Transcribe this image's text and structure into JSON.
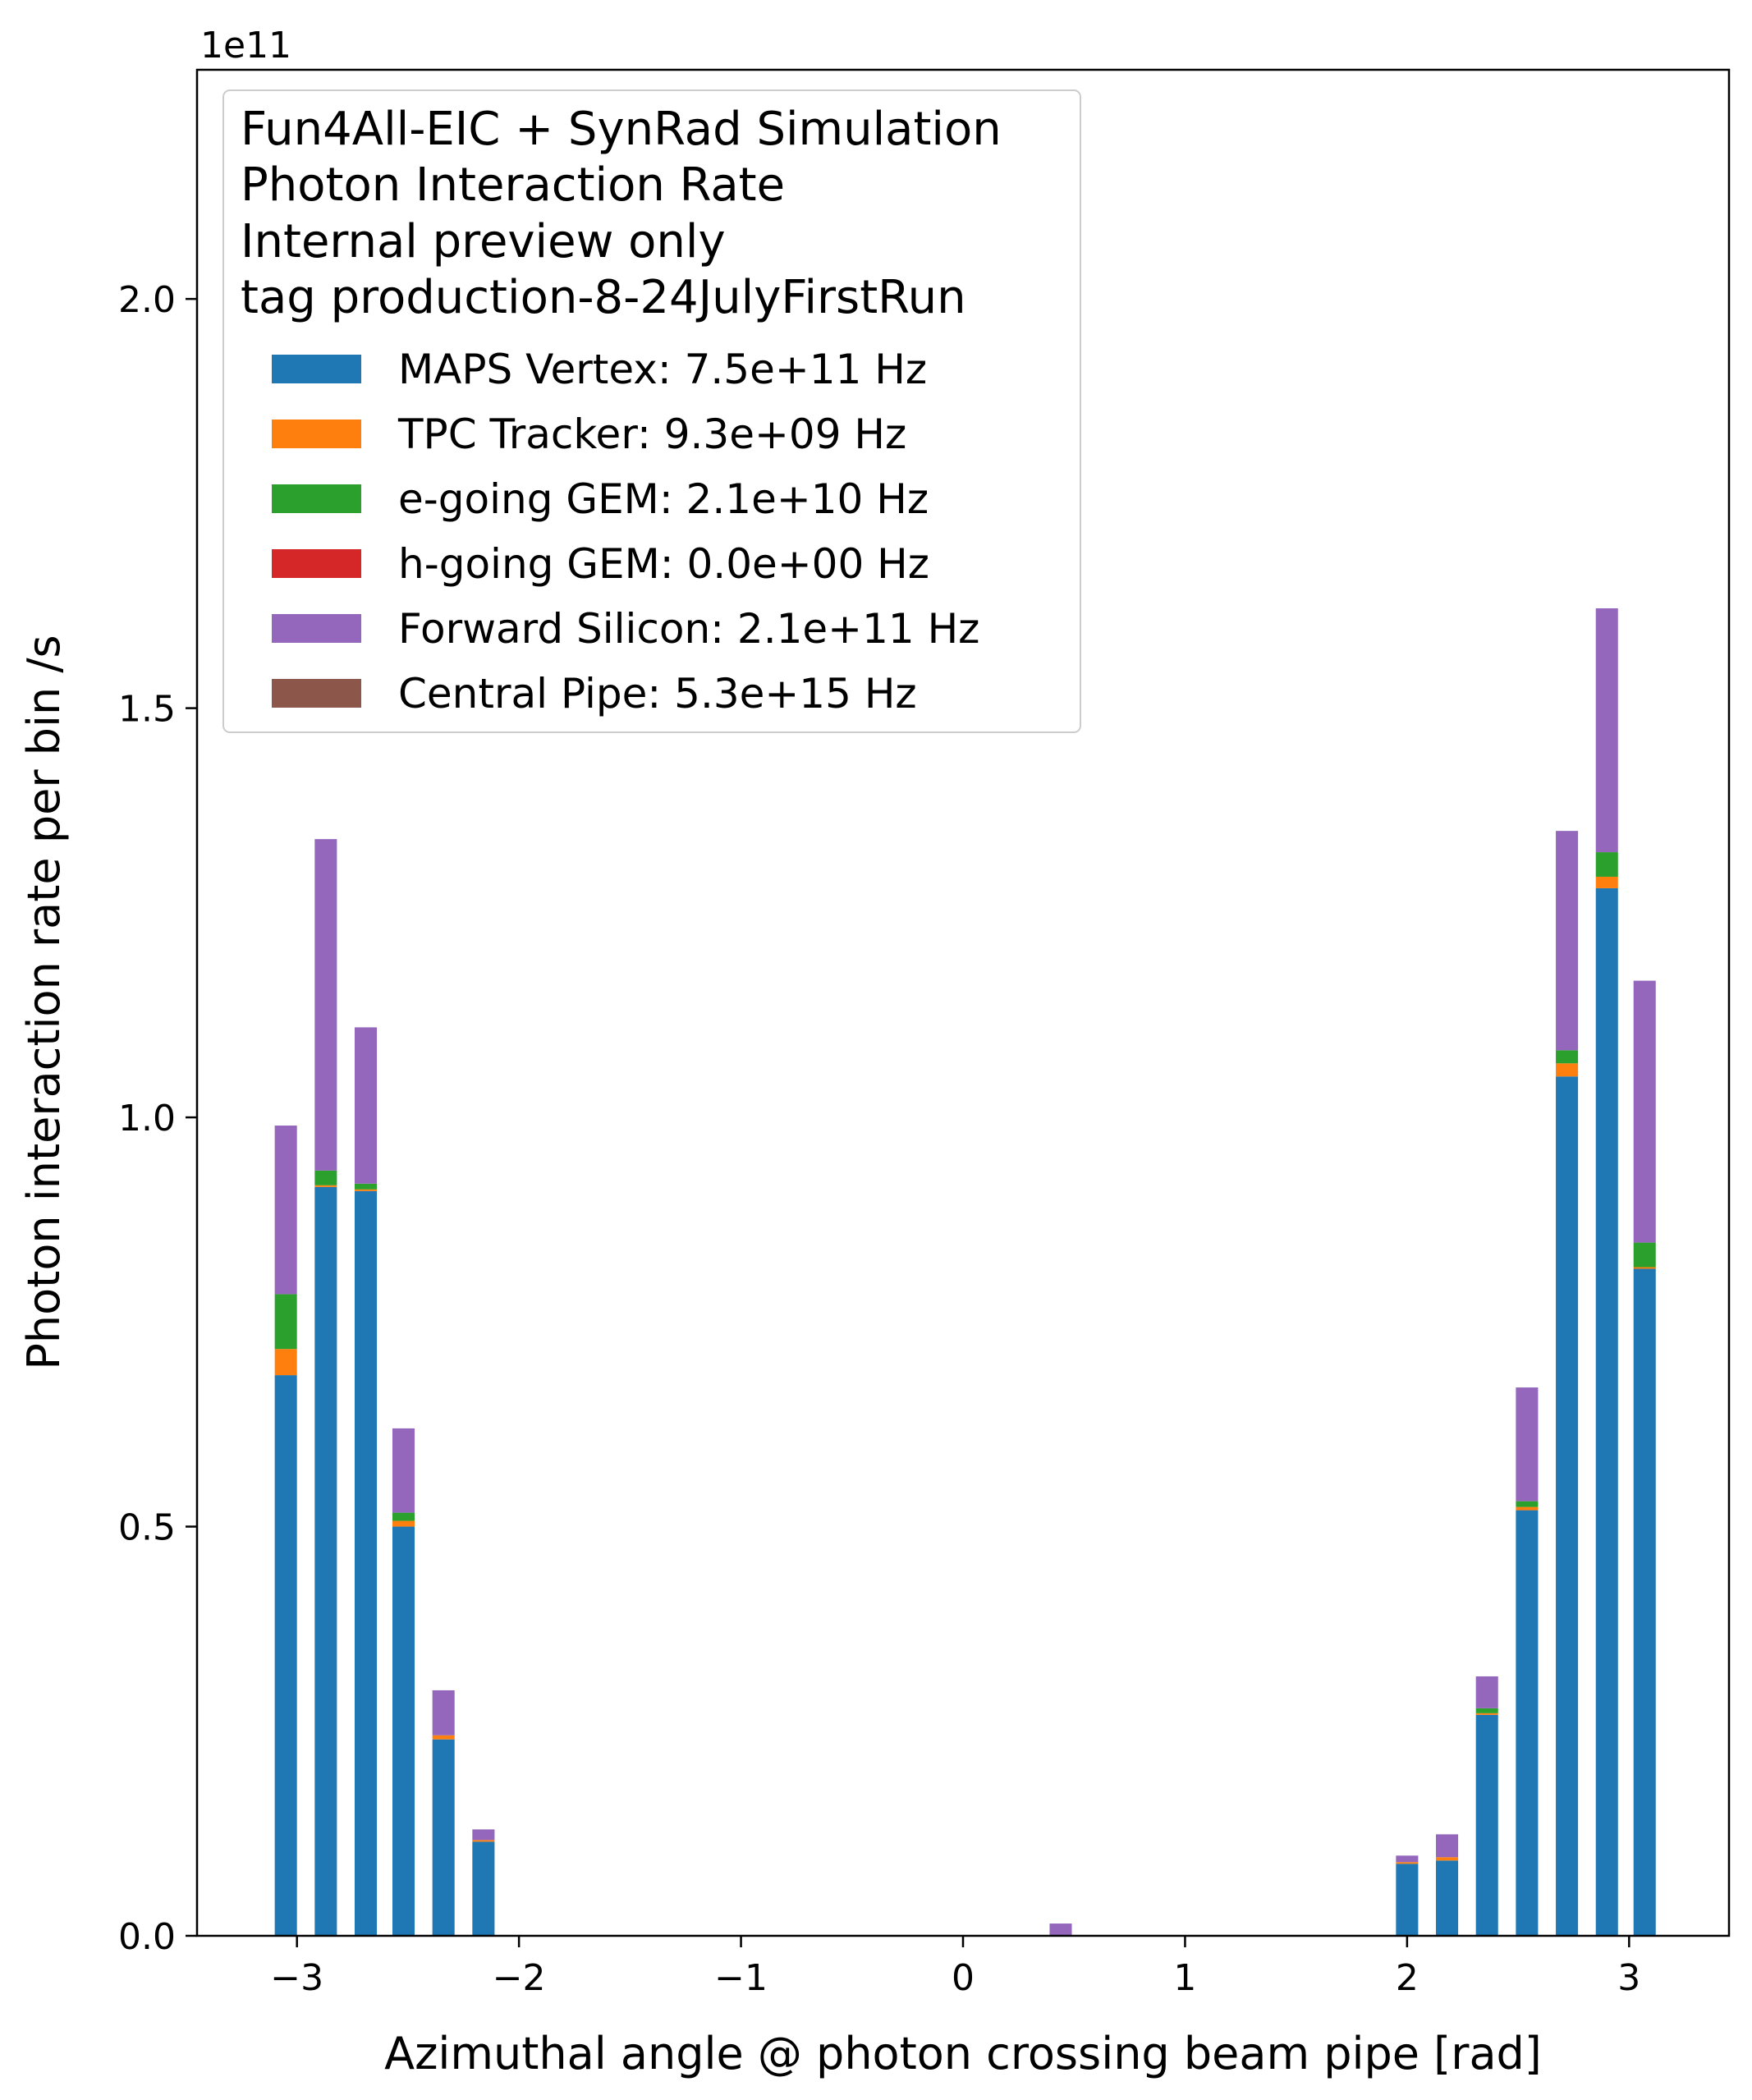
{
  "chart_data": {
    "type": "bar",
    "stacked": true,
    "xlabel": "Azimuthal angle @ photon crossing beam pipe [rad]",
    "ylabel": "Photon interaction rate per bin /s",
    "y_offset_label": "1e11",
    "y_scale": 100000000000.0,
    "xlim": [
      -3.45,
      3.45
    ],
    "ylim": [
      0,
      2.28
    ],
    "x_ticks": [
      -3,
      -2,
      -1,
      0,
      1,
      2,
      3
    ],
    "x_tick_labels": [
      "−3",
      "−2",
      "−1",
      "0",
      "1",
      "2",
      "3"
    ],
    "y_ticks": [
      0.0,
      0.5,
      1.0,
      1.5,
      2.0
    ],
    "y_tick_labels": [
      "0.0",
      "0.5",
      "1.0",
      "1.5",
      "2.0"
    ],
    "bar_width": 0.1,
    "grid": false,
    "legend": {
      "placement": "top-left",
      "title_lines": [
        "Fun4All-EIC + SynRad Simulation",
        "Photon Interaction Rate",
        "Internal preview only",
        "tag production-8-24JulyFirstRun"
      ]
    },
    "x": [
      -3.05,
      -2.87,
      -2.69,
      -2.52,
      -2.34,
      -2.16,
      0.44,
      2.0,
      2.18,
      2.36,
      2.54,
      2.72,
      2.9,
      3.07
    ],
    "series": [
      {
        "name": "MAPS Vertex: 7.5e+11 Hz",
        "color": "#1f77b4",
        "values": [
          0.685,
          0.915,
          0.91,
          0.5,
          0.24,
          0.115,
          0.0,
          0.088,
          0.092,
          0.27,
          0.52,
          1.05,
          1.28,
          0.815
        ]
      },
      {
        "name": "TPC Tracker: 9.3e+09 Hz",
        "color": "#ff7f0e",
        "values": [
          0.032,
          0.002,
          0.002,
          0.007,
          0.005,
          0.002,
          0.0,
          0.002,
          0.004,
          0.002,
          0.004,
          0.016,
          0.014,
          0.002
        ]
      },
      {
        "name": "e-going GEM: 2.1e+10 Hz",
        "color": "#2ca02c",
        "values": [
          0.067,
          0.018,
          0.007,
          0.01,
          0.0,
          0.0,
          0.0,
          0.0,
          0.0,
          0.006,
          0.007,
          0.016,
          0.03,
          0.03
        ]
      },
      {
        "name": "h-going GEM: 0.0e+00 Hz",
        "color": "#d62728",
        "values": [
          0,
          0,
          0,
          0,
          0,
          0,
          0,
          0,
          0,
          0,
          0,
          0,
          0,
          0
        ]
      },
      {
        "name": "Forward Silicon: 2.1e+11 Hz",
        "color": "#9467bd",
        "values": [
          0.206,
          0.405,
          0.191,
          0.103,
          0.055,
          0.013,
          0.015,
          0.008,
          0.028,
          0.039,
          0.139,
          0.268,
          0.298,
          0.32
        ]
      },
      {
        "name": "Central Pipe: 5.3e+15 Hz",
        "color": "#8c564b",
        "values": [
          0,
          0,
          0,
          0,
          0,
          0,
          0,
          0,
          0,
          0,
          0,
          0,
          0,
          0
        ]
      }
    ]
  }
}
